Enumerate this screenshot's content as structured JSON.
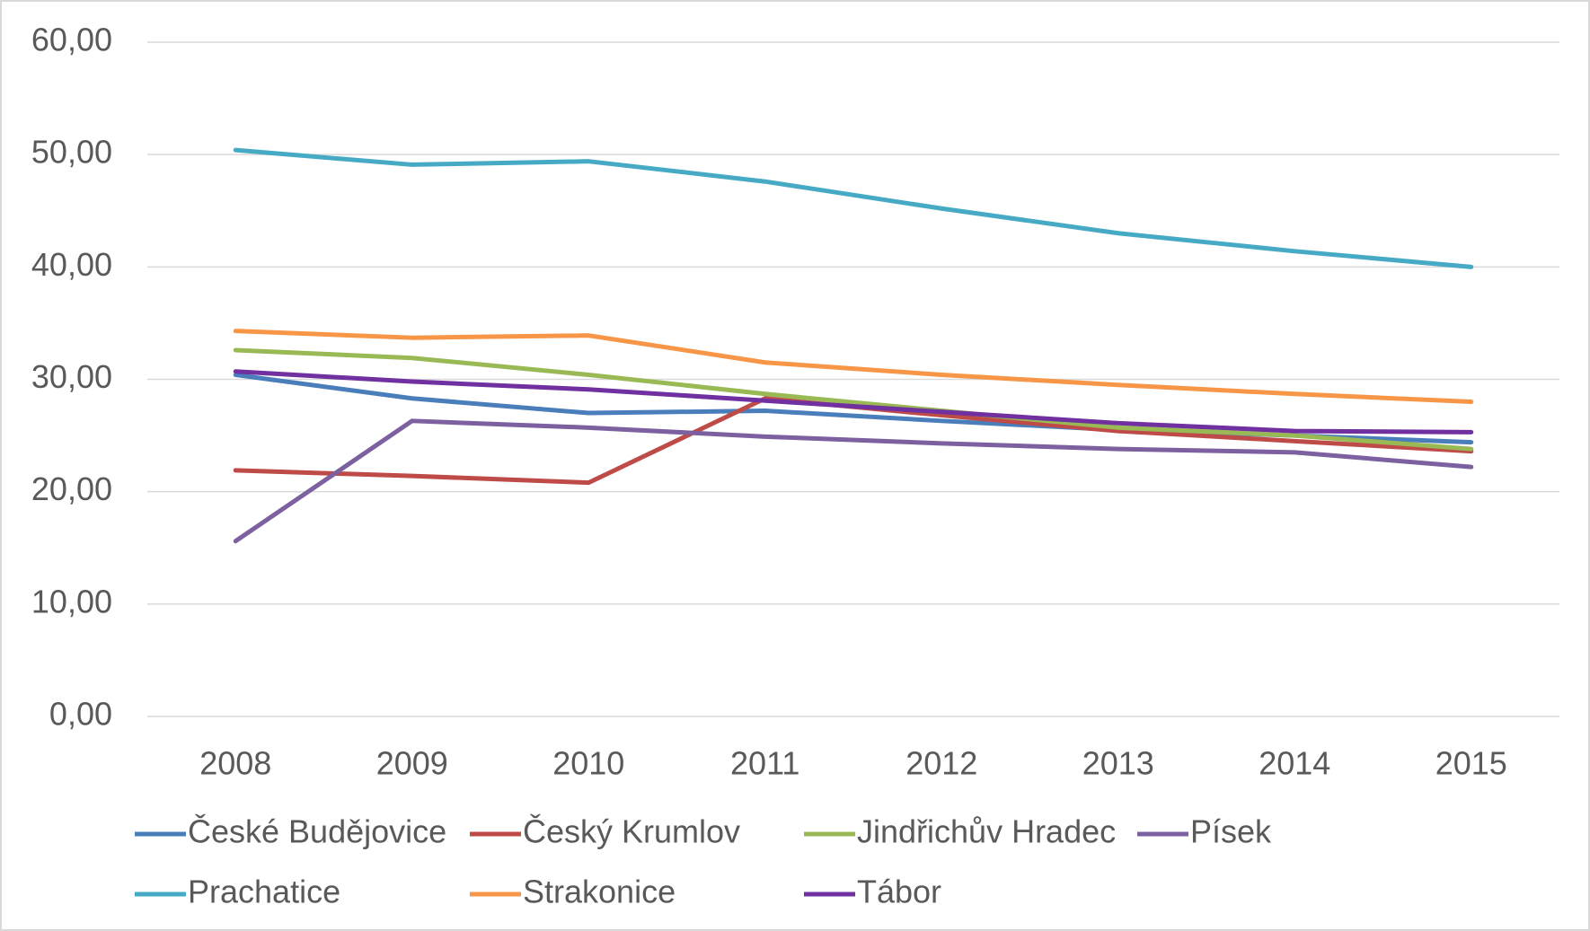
{
  "chart_data": {
    "type": "line",
    "categories": [
      "2008",
      "2009",
      "2010",
      "2011",
      "2012",
      "2013",
      "2014",
      "2015"
    ],
    "series": [
      {
        "name": "České Budějovice",
        "color": "#4a7ebb",
        "values": [
          30.4,
          28.3,
          27.0,
          27.2,
          26.3,
          25.5,
          25.0,
          24.4
        ]
      },
      {
        "name": "Český Krumlov",
        "color": "#be4b48",
        "values": [
          21.9,
          21.4,
          20.8,
          28.3,
          26.8,
          25.4,
          24.5,
          23.6
        ]
      },
      {
        "name": "Jindřichův Hradec",
        "color": "#98b954",
        "values": [
          32.6,
          31.9,
          30.4,
          28.7,
          27.2,
          25.7,
          25.0,
          23.8
        ]
      },
      {
        "name": "Písek",
        "color": "#7d60a0",
        "values": [
          15.6,
          26.3,
          25.7,
          24.9,
          24.3,
          23.8,
          23.5,
          22.2
        ]
      },
      {
        "name": "Prachatice",
        "color": "#46aac5",
        "values": [
          50.4,
          49.1,
          49.4,
          47.6,
          45.2,
          43.0,
          41.4,
          40.0
        ]
      },
      {
        "name": "Strakonice",
        "color": "#f79646",
        "values": [
          34.3,
          33.7,
          33.9,
          31.5,
          30.4,
          29.5,
          28.7,
          28.0
        ]
      },
      {
        "name": "Tábor",
        "color": "#7030a0",
        "values": [
          30.7,
          29.8,
          29.1,
          28.1,
          27.1,
          26.1,
          25.4,
          25.3
        ]
      }
    ],
    "ylim": [
      0,
      60
    ],
    "yticks": [
      {
        "value": 0,
        "label": "0,00"
      },
      {
        "value": 10,
        "label": "10,00"
      },
      {
        "value": 20,
        "label": "20,00"
      },
      {
        "value": 30,
        "label": "30,00"
      },
      {
        "value": 40,
        "label": "40,00"
      },
      {
        "value": 50,
        "label": "50,00"
      },
      {
        "value": 60,
        "label": "60,00"
      }
    ],
    "grid": true,
    "legend": "bottom"
  }
}
